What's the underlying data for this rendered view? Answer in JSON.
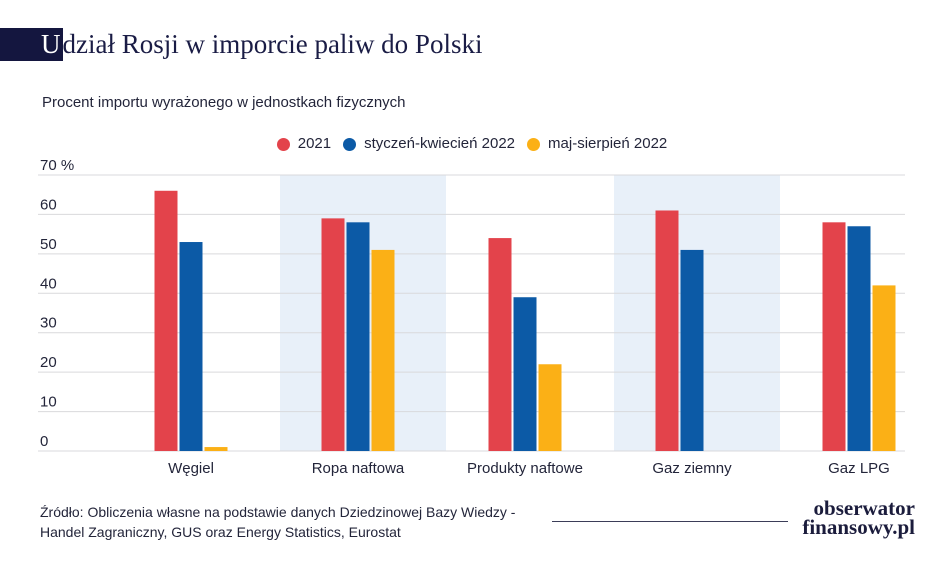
{
  "chart_data": {
    "type": "bar",
    "title": "Udział Rosji w imporcie paliw do Polski",
    "subtitle": "Procent importu wyrażonego w jednostkach fizycznych",
    "categories": [
      "Węgiel",
      "Ropa naftowa",
      "Produkty naftowe",
      "Gaz ziemny",
      "Gaz LPG"
    ],
    "series": [
      {
        "name": "2021",
        "color": "#e3434b",
        "values": [
          66,
          59,
          54,
          61,
          58
        ]
      },
      {
        "name": "styczeń-kwiecień 2022",
        "color": "#0c5aa6",
        "values": [
          53,
          58,
          39,
          51,
          57
        ]
      },
      {
        "name": "maj-sierpień 2022",
        "color": "#fbb016",
        "values": [
          1,
          51,
          22,
          null,
          42
        ]
      }
    ],
    "ylim": [
      0,
      70
    ],
    "yticks": [
      0,
      10,
      20,
      30,
      40,
      50,
      60,
      70
    ],
    "ytick_labels": [
      "0",
      "10",
      "20",
      "30",
      "40",
      "50",
      "60",
      "70 %"
    ],
    "grid": true,
    "legend_position": "top-center"
  },
  "source": {
    "lines": [
      "Źródło: Obliczenia własne na podstawie danych Dziedzinowej Bazy Wiedzy -",
      "Handel Zagraniczny, GUS oraz Energy Statistics, Eurostat"
    ]
  },
  "logo": {
    "line1": "obserwator",
    "line2": "finansowy.pl"
  },
  "colors": {
    "title": "#1a1c45",
    "title_block": "#14163f",
    "band": "#e8f0f9",
    "grid": "#d9d9dc",
    "text": "#23253a"
  }
}
